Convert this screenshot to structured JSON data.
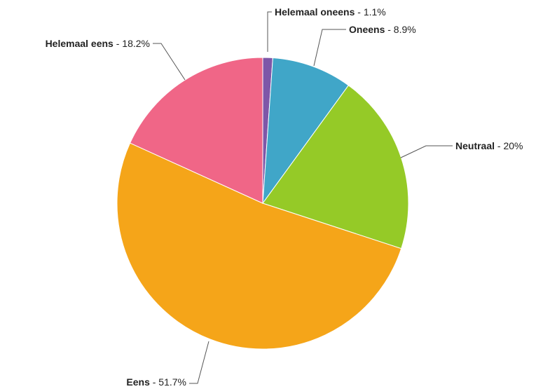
{
  "chart_data": {
    "type": "pie",
    "title": "",
    "slices": [
      {
        "name": "Helemaal oneens",
        "value": 1.1,
        "label": "1.1%",
        "color": "#7e57a8"
      },
      {
        "name": "Oneens",
        "value": 8.9,
        "label": "8.9%",
        "color": "#40a6c8"
      },
      {
        "name": "Neutraal",
        "value": 20,
        "label": "20%",
        "color": "#95ca27"
      },
      {
        "name": "Eens",
        "value": 51.7,
        "label": "51.7%",
        "color": "#f5a519"
      },
      {
        "name": "Helemaal eens",
        "value": 18.2,
        "label": "18.2%",
        "color": "#f06687"
      }
    ]
  }
}
